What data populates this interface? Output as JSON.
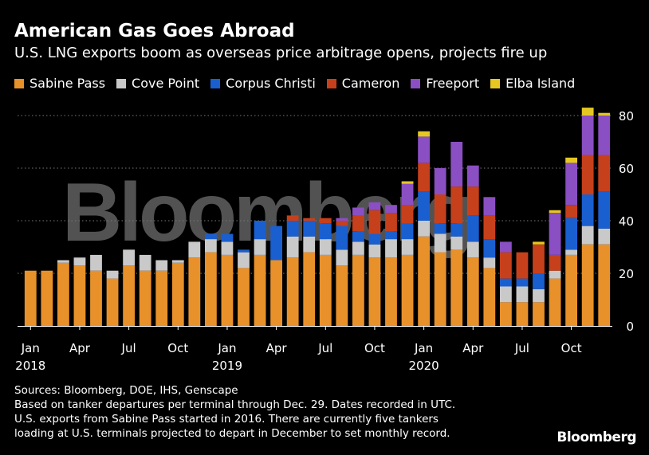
{
  "title": "American Gas Goes Abroad",
  "subtitle": "U.S. LNG exports boom as overseas price arbitrage opens, projects fire up",
  "footnotes": [
    "Sources: Bloomberg, DOE, IHS, Genscape",
    "Based on tanker departures per terminal through Dec. 29. Dates recorded in UTC.",
    "U.S. exports from Sabine Pass started in 2016. There are currently five tankers",
    "loading at U.S. terminals projected to depart in December to set monthly record."
  ],
  "brand": "Bloomberg",
  "watermark": "Bloomberg",
  "colors": {
    "Sabine Pass": "#E8912A",
    "Cove Point": "#C9C9C9",
    "Corpus Christi": "#1A5FD0",
    "Cameron": "#C6401C",
    "Freeport": "#8A4FC2",
    "Elba Island": "#E6C722"
  },
  "chart_data": {
    "type": "bar",
    "stacked": true,
    "ylim": [
      0,
      85
    ],
    "yticks": [
      0,
      20,
      40,
      60,
      80
    ],
    "grid": true,
    "legend_position": "top",
    "categories": [
      "2018-01",
      "2018-02",
      "2018-03",
      "2018-04",
      "2018-05",
      "2018-06",
      "2018-07",
      "2018-08",
      "2018-09",
      "2018-10",
      "2018-11",
      "2018-12",
      "2019-01",
      "2019-02",
      "2019-03",
      "2019-04",
      "2019-05",
      "2019-06",
      "2019-07",
      "2019-08",
      "2019-09",
      "2019-10",
      "2019-11",
      "2019-12",
      "2020-01",
      "2020-02",
      "2020-03",
      "2020-04",
      "2020-05",
      "2020-06",
      "2020-07",
      "2020-08",
      "2020-09",
      "2020-10",
      "2020-11",
      "2020-12"
    ],
    "x_tick_labels": [
      {
        "index": 0,
        "label": "Jan",
        "year": "2018"
      },
      {
        "index": 3,
        "label": "Apr",
        "year": ""
      },
      {
        "index": 6,
        "label": "Jul",
        "year": ""
      },
      {
        "index": 9,
        "label": "Oct",
        "year": ""
      },
      {
        "index": 12,
        "label": "Jan",
        "year": "2019"
      },
      {
        "index": 15,
        "label": "Apr",
        "year": ""
      },
      {
        "index": 18,
        "label": "Jul",
        "year": ""
      },
      {
        "index": 21,
        "label": "Oct",
        "year": ""
      },
      {
        "index": 24,
        "label": "Jan",
        "year": "2020"
      },
      {
        "index": 27,
        "label": "Apr",
        "year": ""
      },
      {
        "index": 30,
        "label": "Jul",
        "year": ""
      },
      {
        "index": 33,
        "label": "Oct",
        "year": ""
      }
    ],
    "series": [
      {
        "name": "Sabine Pass",
        "values": [
          21,
          21,
          24,
          23,
          21,
          18,
          23,
          21,
          21,
          24,
          26,
          28,
          27,
          22,
          27,
          25,
          26,
          28,
          27,
          23,
          27,
          26,
          26,
          27,
          34,
          28,
          29,
          26,
          22,
          9,
          9,
          9,
          18,
          27,
          31,
          31
        ]
      },
      {
        "name": "Cove Point",
        "values": [
          0,
          0,
          1,
          3,
          6,
          3,
          6,
          6,
          4,
          1,
          6,
          5,
          5,
          6,
          6,
          0,
          8,
          6,
          6,
          6,
          5,
          5,
          7,
          6,
          6,
          7,
          5,
          6,
          4,
          6,
          6,
          5,
          3,
          2,
          7,
          6
        ]
      },
      {
        "name": "Corpus Christi",
        "values": [
          0,
          0,
          0,
          0,
          0,
          0,
          0,
          0,
          0,
          0,
          0,
          2,
          3,
          1,
          7,
          13,
          6,
          6,
          6,
          9,
          4,
          4,
          3,
          6,
          11,
          4,
          5,
          10,
          7,
          3,
          3,
          6,
          0,
          12,
          12,
          14
        ]
      },
      {
        "name": "Cameron",
        "values": [
          0,
          0,
          0,
          0,
          0,
          0,
          0,
          0,
          0,
          0,
          0,
          0,
          0,
          0,
          0,
          0,
          2,
          1,
          2,
          2,
          6,
          9,
          7,
          7,
          11,
          11,
          14,
          11,
          9,
          10,
          10,
          11,
          6,
          5,
          15,
          14
        ]
      },
      {
        "name": "Freeport",
        "values": [
          0,
          0,
          0,
          0,
          0,
          0,
          0,
          0,
          0,
          0,
          0,
          0,
          0,
          0,
          0,
          0,
          0,
          0,
          0,
          1,
          3,
          3,
          3,
          8,
          10,
          10,
          17,
          8,
          7,
          4,
          0,
          0,
          16,
          16,
          15,
          15
        ]
      },
      {
        "name": "Elba Island",
        "values": [
          0,
          0,
          0,
          0,
          0,
          0,
          0,
          0,
          0,
          0,
          0,
          0,
          0,
          0,
          0,
          0,
          0,
          0,
          0,
          0,
          0,
          0,
          0,
          1,
          2,
          0,
          0,
          0,
          0,
          0,
          0,
          1,
          1,
          2,
          3,
          1
        ]
      }
    ]
  }
}
